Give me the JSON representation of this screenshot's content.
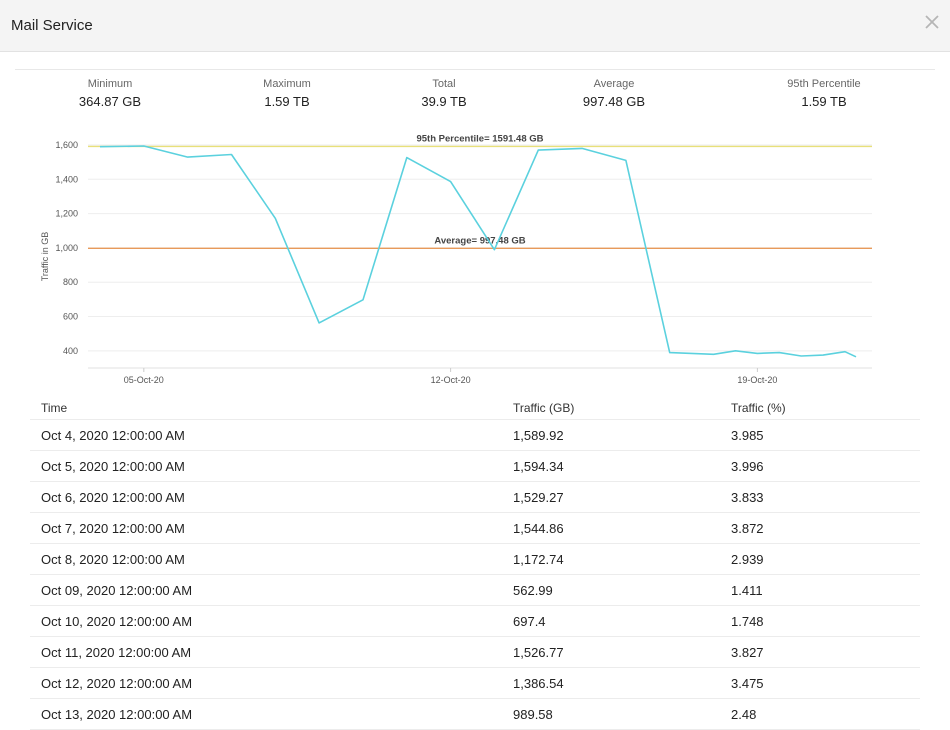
{
  "window": {
    "title": "Mail Service"
  },
  "stats": [
    {
      "label": "Minimum",
      "value": "364.87 GB"
    },
    {
      "label": "Maximum",
      "value": "1.59 TB"
    },
    {
      "label": "Total",
      "value": "39.9 TB"
    },
    {
      "label": "Average",
      "value": "997.48 GB"
    },
    {
      "label": "95th Percentile",
      "value": "1.59 TB"
    }
  ],
  "chart_data": {
    "type": "line",
    "ylabel": "Traffic in GB",
    "ylim": [
      300,
      1600
    ],
    "y_ticks": [
      "400",
      "600",
      "800",
      "1,000",
      "1,200",
      "1,400",
      "1,600"
    ],
    "x_ticks": [
      "05-Oct-20",
      "12-Oct-20",
      "19-Oct-20"
    ],
    "grid": true,
    "x": [
      "2020-10-04",
      "2020-10-05",
      "2020-10-06",
      "2020-10-07",
      "2020-10-08",
      "2020-10-09",
      "2020-10-10",
      "2020-10-11",
      "2020-10-12",
      "2020-10-13",
      "2020-10-14",
      "2020-10-15",
      "2020-10-16",
      "2020-10-17",
      "2020-10-18",
      "2020-10-18T12",
      "2020-10-19",
      "2020-10-19T12",
      "2020-10-20",
      "2020-10-20T12",
      "2020-10-21",
      "2020-10-21T06"
    ],
    "series": [
      {
        "color": "#5bd1de",
        "values": [
          1589.92,
          1594.34,
          1529.27,
          1544.86,
          1172.74,
          562.99,
          697.4,
          1526.77,
          1386.54,
          989.58,
          1570,
          1580,
          1510,
          390,
          380,
          400,
          385,
          390,
          370,
          375,
          395,
          365
        ]
      }
    ],
    "reference_lines": [
      {
        "label": "95th Percentile= 1591.48 GB",
        "value": 1591.48,
        "color": "#e8e07a"
      },
      {
        "label": "Average= 997.48 GB",
        "value": 997.48,
        "color": "#e89a5a"
      }
    ]
  },
  "table": {
    "headers": [
      "Time",
      "Traffic (GB)",
      "Traffic (%)"
    ],
    "rows": [
      [
        "Oct 4, 2020 12:00:00 AM",
        "1,589.92",
        "3.985"
      ],
      [
        "Oct 5, 2020 12:00:00 AM",
        "1,594.34",
        "3.996"
      ],
      [
        "Oct 6, 2020 12:00:00 AM",
        "1,529.27",
        "3.833"
      ],
      [
        "Oct 7, 2020 12:00:00 AM",
        "1,544.86",
        "3.872"
      ],
      [
        "Oct 8, 2020 12:00:00 AM",
        "1,172.74",
        "2.939"
      ],
      [
        "Oct 09, 2020 12:00:00 AM",
        "562.99",
        "1.411"
      ],
      [
        "Oct 10, 2020 12:00:00 AM",
        "697.4",
        "1.748"
      ],
      [
        "Oct 11, 2020 12:00:00 AM",
        "1,526.77",
        "3.827"
      ],
      [
        "Oct 12, 2020 12:00:00 AM",
        "1,386.54",
        "3.475"
      ],
      [
        "Oct 13, 2020 12:00:00 AM",
        "989.58",
        "2.48"
      ]
    ]
  }
}
